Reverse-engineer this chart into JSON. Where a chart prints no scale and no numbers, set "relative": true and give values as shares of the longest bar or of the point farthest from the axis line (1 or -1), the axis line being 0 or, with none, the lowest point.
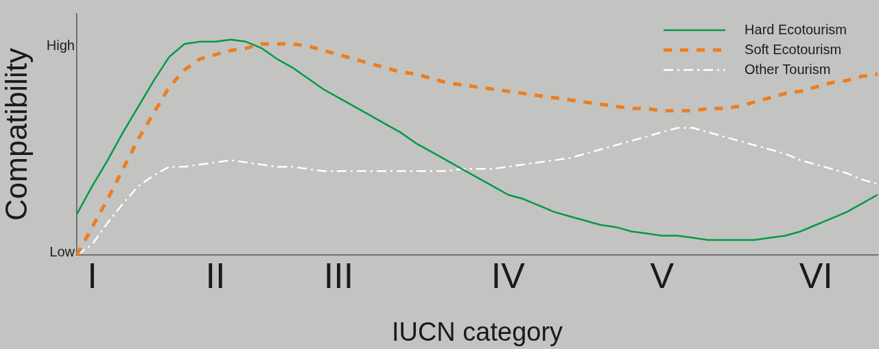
{
  "chart_data": {
    "type": "line",
    "xlabel": "IUCN category",
    "ylabel": "Compatibility",
    "relative": true,
    "categories": [
      null,
      "I",
      null,
      null,
      null,
      null,
      null,
      null,
      null,
      "II",
      null,
      null,
      null,
      null,
      null,
      null,
      null,
      "III",
      null,
      null,
      null,
      null,
      null,
      null,
      null,
      null,
      null,
      null,
      "IV",
      null,
      null,
      null,
      null,
      null,
      null,
      null,
      null,
      null,
      "V",
      null,
      null,
      null,
      null,
      null,
      null,
      null,
      null,
      null,
      "VI",
      null,
      null,
      null,
      null
    ],
    "annotations": [
      "Low",
      "High"
    ],
    "grid": false,
    "legend": "top right",
    "marker": "none",
    "series": [
      {
        "name": "Hard Ecotourism",
        "color": "#009a44",
        "line_style": "solid",
        "values": [
          0.19,
          0.32,
          0.44,
          0.57,
          0.69,
          0.81,
          0.92,
          0.98,
          0.99,
          0.99,
          1.0,
          0.99,
          0.96,
          0.91,
          0.87,
          0.82,
          0.77,
          0.73,
          0.69,
          0.65,
          0.61,
          0.57,
          0.52,
          0.48,
          0.44,
          0.4,
          0.36,
          0.32,
          0.28,
          0.26,
          0.23,
          0.2,
          0.18,
          0.16,
          0.14,
          0.13,
          0.11,
          0.1,
          0.09,
          0.09,
          0.08,
          0.07,
          0.07,
          0.07,
          0.07,
          0.08,
          0.09,
          0.11,
          0.14,
          0.17,
          0.2,
          0.24,
          0.28
        ]
      },
      {
        "name": "Soft Ecotourism",
        "color": "#ee7d1e",
        "line_style": "dashed",
        "values": [
          0,
          0.13,
          0.26,
          0.4,
          0.54,
          0.66,
          0.78,
          0.86,
          0.91,
          0.93,
          0.95,
          0.96,
          0.98,
          0.98,
          0.98,
          0.97,
          0.95,
          0.93,
          0.91,
          0.89,
          0.87,
          0.85,
          0.84,
          0.82,
          0.8,
          0.79,
          0.78,
          0.77,
          0.76,
          0.75,
          0.74,
          0.73,
          0.72,
          0.71,
          0.7,
          0.69,
          0.68,
          0.68,
          0.67,
          0.67,
          0.67,
          0.68,
          0.68,
          0.69,
          0.71,
          0.73,
          0.75,
          0.76,
          0.78,
          0.8,
          0.81,
          0.83,
          0.84
        ]
      },
      {
        "name": "Other Tourism",
        "color": "#ffffff",
        "line_style": "dashdot",
        "values": [
          0,
          0.05,
          0.15,
          0.24,
          0.32,
          0.37,
          0.41,
          0.41,
          0.42,
          0.43,
          0.44,
          0.43,
          0.42,
          0.41,
          0.41,
          0.4,
          0.39,
          0.39,
          0.39,
          0.39,
          0.39,
          0.39,
          0.39,
          0.39,
          0.39,
          0.4,
          0.4,
          0.4,
          0.41,
          0.42,
          0.43,
          0.44,
          0.45,
          0.47,
          0.49,
          0.51,
          0.53,
          0.55,
          0.57,
          0.59,
          0.59,
          0.57,
          0.55,
          0.53,
          0.51,
          0.49,
          0.47,
          0.44,
          0.42,
          0.4,
          0.38,
          0.35,
          0.33
        ]
      }
    ]
  }
}
